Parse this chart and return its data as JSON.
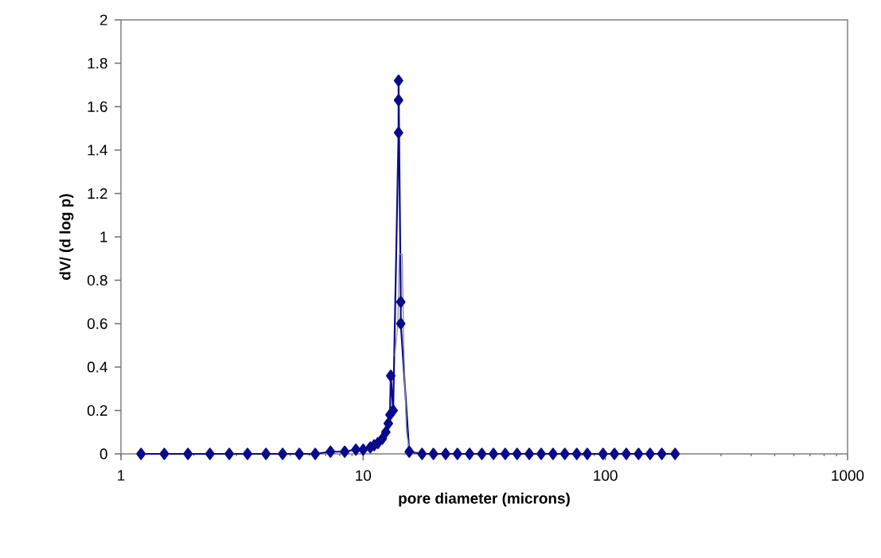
{
  "chart_data": {
    "type": "line",
    "xlabel": "pore diameter (microns)",
    "ylabel": "dV/ (d log p)",
    "log": "x",
    "xlim": [
      1,
      1000
    ],
    "xticks": [
      1,
      10,
      100,
      1000
    ],
    "ylim": [
      0,
      2
    ],
    "yticks": [
      0,
      0.2,
      0.4,
      0.6,
      0.8,
      1,
      1.2,
      1.4,
      1.6,
      1.8,
      2
    ],
    "marker": "diamond",
    "line_style": "solid",
    "series": [
      {
        "color": "#0a0a8c",
        "x": [
          1.21,
          1.51,
          1.89,
          2.33,
          2.8,
          3.33,
          3.97,
          4.65,
          5.45,
          6.34,
          7.33,
          8.39,
          9.33,
          10,
          10.7,
          11.1,
          11.5,
          12,
          12.4,
          12.7,
          12.9,
          13,
          13.3,
          14,
          14,
          14,
          14.3,
          14.3,
          15.5,
          17.5,
          19.5,
          21.9,
          24.5,
          27.5,
          30.9,
          34.5,
          38.6,
          43.2,
          48.5,
          54.3,
          60.8,
          68,
          76.2,
          84.2,
          97.8,
          109,
          122,
          137,
          153,
          171,
          194
        ],
        "values": [
          0,
          0,
          0,
          0,
          0,
          0,
          0,
          0,
          0,
          0,
          0.01,
          0.01,
          0.02,
          0.02,
          0.03,
          0.04,
          0.05,
          0.07,
          0.1,
          0.14,
          0.18,
          0.36,
          0.2,
          1.48,
          1.63,
          1.72,
          0.7,
          0.6,
          0.01,
          0,
          0,
          0,
          0,
          0,
          0,
          0,
          0,
          0,
          0,
          0,
          0,
          0,
          0,
          0,
          0,
          0,
          0,
          0,
          0,
          0,
          0
        ]
      },
      {
        "color": "#8c8c9c",
        "marker": "none",
        "x": [
          13.5,
          13.9,
          14.1,
          14.5,
          14.7,
          15.1,
          15.6
        ],
        "values": [
          0.45,
          0.6,
          0.92,
          0.92,
          0.5,
          0.1,
          0
        ]
      }
    ]
  }
}
